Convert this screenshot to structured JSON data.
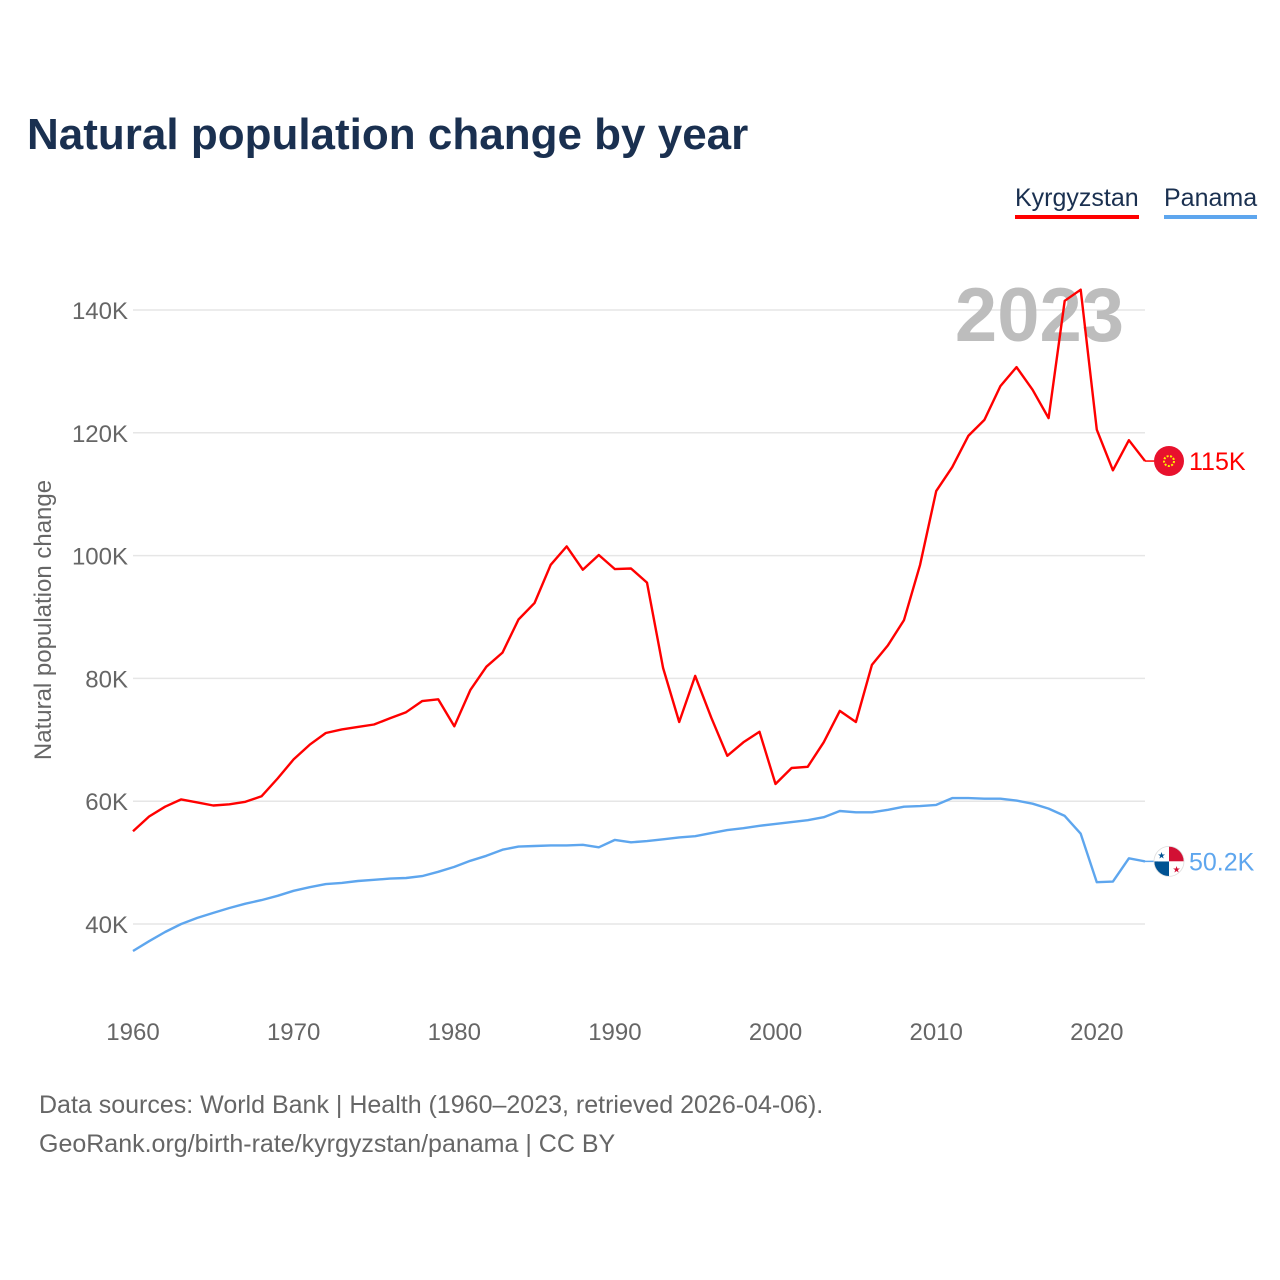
{
  "title": "Natural population change by year",
  "footer": {
    "line1": "Data sources: World Bank | Health (1960–2023, retrieved 2026-04-06).",
    "line2": "GeoRank.org/birth-rate/kyrgyzstan/panama | CC BY"
  },
  "chart_data": {
    "type": "line",
    "title": "Natural population change by year",
    "xlabel": "",
    "ylabel": "Natural population change",
    "year_watermark": "2023",
    "xlim": [
      1960,
      2023
    ],
    "ylim": [
      26000,
      150000
    ],
    "x_ticks": [
      1960,
      1970,
      1980,
      1990,
      2000,
      2010,
      2020
    ],
    "x_tick_labels": [
      "1960",
      "1970",
      "1980",
      "1990",
      "2000",
      "2010",
      "2020"
    ],
    "y_ticks": [
      40000,
      60000,
      80000,
      100000,
      120000,
      140000
    ],
    "y_tick_labels": [
      "40K",
      "60K",
      "80K",
      "100K",
      "120K",
      "140K"
    ],
    "grid": true,
    "legend_position": "top-right",
    "x": [
      1960,
      1961,
      1962,
      1963,
      1964,
      1965,
      1966,
      1967,
      1968,
      1969,
      1970,
      1971,
      1972,
      1973,
      1974,
      1975,
      1976,
      1977,
      1978,
      1979,
      1980,
      1981,
      1982,
      1983,
      1984,
      1985,
      1986,
      1987,
      1988,
      1989,
      1990,
      1991,
      1992,
      1993,
      1994,
      1995,
      1996,
      1997,
      1998,
      1999,
      2000,
      2001,
      2002,
      2003,
      2004,
      2005,
      2006,
      2007,
      2008,
      2009,
      2010,
      2011,
      2012,
      2013,
      2014,
      2015,
      2016,
      2017,
      2018,
      2019,
      2020,
      2021,
      2022,
      2023
    ],
    "series": [
      {
        "name": "Kyrgyzstan",
        "color": "#ff0000",
        "end_label": "115K",
        "values": [
          55100,
          57500,
          59100,
          60300,
          59800,
          59300,
          59500,
          59900,
          60800,
          63700,
          66800,
          69200,
          71100,
          71700,
          72100,
          72500,
          73500,
          74500,
          76300,
          76600,
          72200,
          78100,
          81900,
          84200,
          89600,
          92300,
          98500,
          101500,
          97700,
          100100,
          97800,
          97900,
          95600,
          81700,
          72900,
          80400,
          73600,
          67400,
          69600,
          71300,
          62800,
          65400,
          65600,
          69600,
          74700,
          72900,
          82200,
          85400,
          89500,
          98500,
          110500,
          114400,
          119500,
          122100,
          127600,
          130700,
          127000,
          122400,
          141500,
          143300,
          120500,
          113900,
          118800,
          115400
        ]
      },
      {
        "name": "Panama",
        "color": "#5ea6ee",
        "end_label": "50.2K",
        "values": [
          35600,
          37200,
          38700,
          40000,
          41000,
          41800,
          42600,
          43300,
          43900,
          44600,
          45400,
          46000,
          46500,
          46700,
          47000,
          47200,
          47400,
          47500,
          47800,
          48500,
          49300,
          50300,
          51100,
          52100,
          52600,
          52700,
          52800,
          52800,
          52900,
          52500,
          53700,
          53300,
          53500,
          53800,
          54100,
          54300,
          54800,
          55300,
          55600,
          56000,
          56300,
          56600,
          56900,
          57400,
          58400,
          58200,
          58200,
          58600,
          59100,
          59200,
          59400,
          60500,
          60500,
          60400,
          60400,
          60100,
          59600,
          58800,
          57600,
          54700,
          46800,
          46900,
          50700,
          50200
        ]
      }
    ]
  }
}
